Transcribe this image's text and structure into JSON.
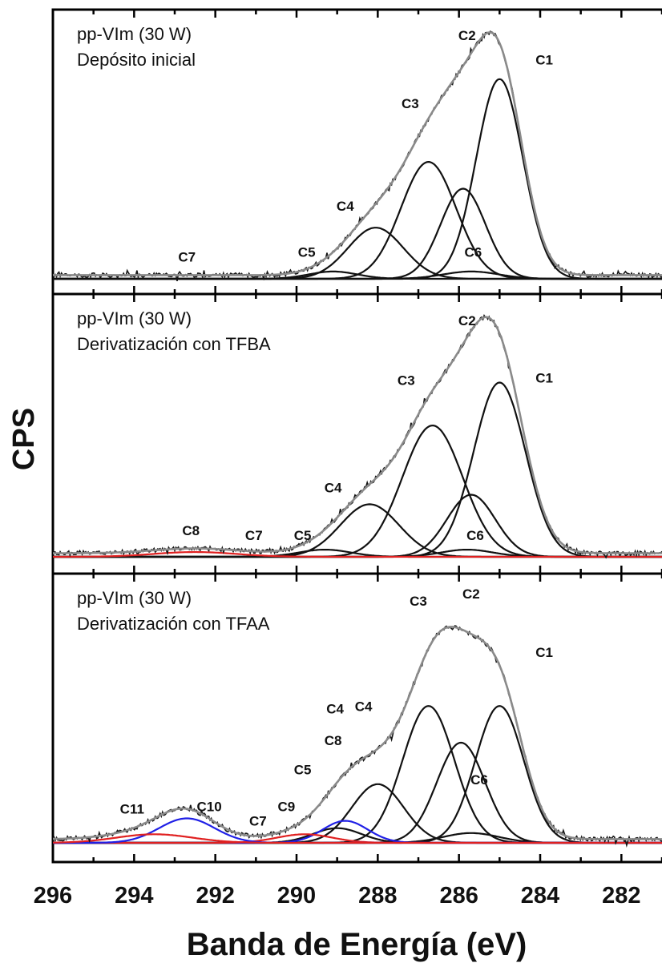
{
  "chart_data": {
    "type": "line",
    "xlabel": "Banda de Energía (eV)",
    "ylabel": "CPS",
    "xlim": [
      296,
      281
    ],
    "x_ticks": [
      "296",
      "294",
      "292",
      "290",
      "288",
      "286",
      "284",
      "282"
    ],
    "x_reversed": true,
    "colors": {
      "envelope": "#8a8a8a",
      "data": "#151515",
      "component": "#111111",
      "blue": "#1f1fe6",
      "red": "#e02020"
    },
    "panels": [
      {
        "title": [
          "pp-VIm (30 W)",
          "Depósito inicial"
        ],
        "components": [
          {
            "name": "C1",
            "center": 285.0,
            "height": 0.82,
            "fwhm": 1.35,
            "color": "black"
          },
          {
            "name": "C2",
            "center": 285.9,
            "height": 0.37,
            "fwhm": 1.3,
            "color": "black"
          },
          {
            "name": "C3",
            "center": 286.75,
            "height": 0.48,
            "fwhm": 1.6,
            "color": "black"
          },
          {
            "name": "C4",
            "center": 288.05,
            "height": 0.21,
            "fwhm": 1.6,
            "color": "black"
          },
          {
            "name": "C5",
            "center": 289.1,
            "height": 0.03,
            "fwhm": 1.4,
            "color": "black"
          },
          {
            "name": "C6",
            "center": 285.7,
            "height": 0.03,
            "fwhm": 1.6,
            "color": "black"
          },
          {
            "name": "C7",
            "center": 292.6,
            "height": 0.0,
            "fwhm": 1.5,
            "color": "black"
          }
        ],
        "labels": [
          {
            "text": "C1",
            "x": 283.9,
            "y": 0.88
          },
          {
            "text": "C2",
            "x": 285.8,
            "y": 0.98
          },
          {
            "text": "C3",
            "x": 287.2,
            "y": 0.7
          },
          {
            "text": "C4",
            "x": 288.8,
            "y": 0.28
          },
          {
            "text": "C5",
            "x": 289.75,
            "y": 0.09
          },
          {
            "text": "C6",
            "x": 285.65,
            "y": 0.09
          },
          {
            "text": "C7",
            "x": 292.7,
            "y": 0.07
          }
        ]
      },
      {
        "title": [
          "pp-VIm (30 W)",
          "Derivatización con TFBA"
        ],
        "components": [
          {
            "name": "C1",
            "center": 285.0,
            "height": 0.73,
            "fwhm": 1.5,
            "color": "black"
          },
          {
            "name": "C2",
            "center": 285.7,
            "height": 0.26,
            "fwhm": 1.4,
            "color": "black"
          },
          {
            "name": "C3",
            "center": 286.65,
            "height": 0.55,
            "fwhm": 1.75,
            "color": "black"
          },
          {
            "name": "C4",
            "center": 288.2,
            "height": 0.22,
            "fwhm": 1.7,
            "color": "black"
          },
          {
            "name": "C5",
            "center": 289.3,
            "height": 0.03,
            "fwhm": 1.5,
            "color": "black"
          },
          {
            "name": "C6",
            "center": 285.8,
            "height": 0.03,
            "fwhm": 1.5,
            "color": "black"
          },
          {
            "name": "C7",
            "center": 291.2,
            "height": 0.0,
            "fwhm": 1.5,
            "color": "black"
          },
          {
            "name": "C8",
            "center": 292.5,
            "height": 0.02,
            "fwhm": 2.4,
            "color": "red"
          }
        ],
        "labels": [
          {
            "text": "C1",
            "x": 283.9,
            "y": 0.73
          },
          {
            "text": "C2",
            "x": 285.8,
            "y": 0.97
          },
          {
            "text": "C3",
            "x": 287.3,
            "y": 0.72
          },
          {
            "text": "C4",
            "x": 289.1,
            "y": 0.27
          },
          {
            "text": "C5",
            "x": 289.85,
            "y": 0.07
          },
          {
            "text": "C6",
            "x": 285.6,
            "y": 0.07
          },
          {
            "text": "C7",
            "x": 291.05,
            "y": 0.07
          },
          {
            "text": "C8",
            "x": 292.6,
            "y": 0.09
          }
        ]
      },
      {
        "title": [
          "pp-VIm (30 W)",
          " Derivatización con TFAA"
        ],
        "components": [
          {
            "name": "C1",
            "center": 285.0,
            "height": 0.56,
            "fwhm": 1.4,
            "color": "black"
          },
          {
            "name": "C2",
            "center": 285.95,
            "height": 0.41,
            "fwhm": 1.4,
            "color": "black"
          },
          {
            "name": "C3",
            "center": 286.75,
            "height": 0.56,
            "fwhm": 1.5,
            "color": "black"
          },
          {
            "name": "C4",
            "center": 288.0,
            "height": 0.24,
            "fwhm": 1.5,
            "color": "black"
          },
          {
            "name": "C5",
            "center": 289.0,
            "height": 0.06,
            "fwhm": 1.4,
            "color": "black"
          },
          {
            "name": "C6",
            "center": 285.7,
            "height": 0.04,
            "fwhm": 1.6,
            "color": "black"
          },
          {
            "name": "C7",
            "center": 291.2,
            "height": 0.0,
            "fwhm": 1.5,
            "color": "black"
          },
          {
            "name": "C8",
            "center": 288.8,
            "height": 0.09,
            "fwhm": 1.3,
            "color": "blue"
          },
          {
            "name": "C9",
            "center": 289.8,
            "height": 0.035,
            "fwhm": 1.6,
            "color": "red"
          },
          {
            "name": "C10",
            "center": 292.7,
            "height": 0.1,
            "fwhm": 1.6,
            "color": "blue"
          },
          {
            "name": "C11",
            "center": 293.5,
            "height": 0.035,
            "fwhm": 2.2,
            "color": "red"
          }
        ],
        "labels": [
          {
            "text": "C1",
            "x": 283.9,
            "y": 0.76
          },
          {
            "text": "C2",
            "x": 285.7,
            "y": 1.0
          },
          {
            "text": "C3",
            "x": 287.0,
            "y": 0.97
          },
          {
            "text": "C4",
            "x": 289.05,
            "y": 0.53
          },
          {
            "text": "C4",
            "x": 288.35,
            "y": 0.54
          },
          {
            "text": "C8",
            "x": 289.1,
            "y": 0.4
          },
          {
            "text": "C5",
            "x": 289.85,
            "y": 0.28
          },
          {
            "text": "C9",
            "x": 290.25,
            "y": 0.13
          },
          {
            "text": "C6",
            "x": 285.5,
            "y": 0.24
          },
          {
            "text": "C7",
            "x": 290.95,
            "y": 0.07
          },
          {
            "text": "C10",
            "x": 292.15,
            "y": 0.13
          },
          {
            "text": "C11",
            "x": 294.05,
            "y": 0.12
          }
        ]
      }
    ]
  }
}
